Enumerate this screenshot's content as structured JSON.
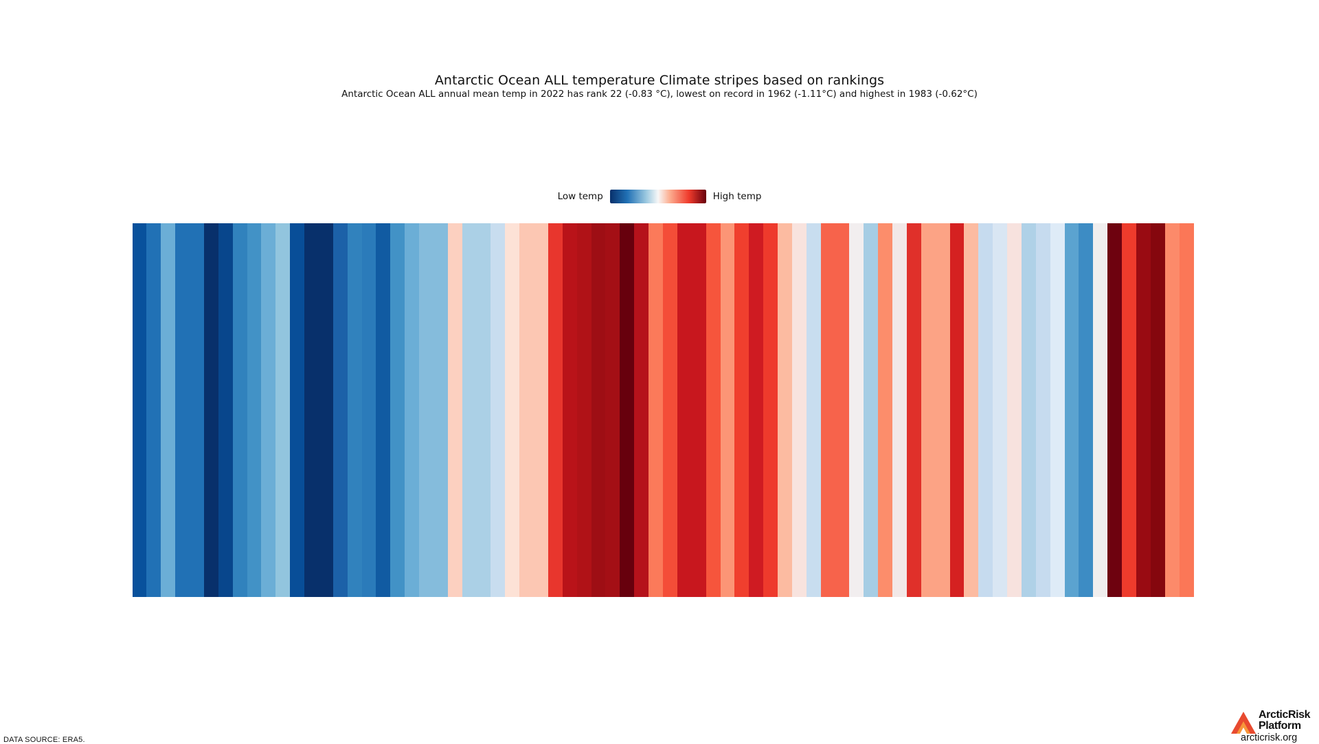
{
  "chart_data": {
    "type": "heatmap",
    "title": "Antarctic Ocean ALL temperature Climate stripes based on rankings",
    "subtitle": "Antarctic Ocean ALL annual mean temp in 2022 has rank 22 (-0.83 °C), lowest on record in 1962 (-1.11°C) and highest in 1983 (-0.62°C)",
    "legend": {
      "low_label": "Low temp",
      "high_label": "High temp",
      "placement": "top-center"
    },
    "stripe_colors": [
      "#08519c",
      "#2171b5",
      "#6baed6",
      "#2171b5",
      "#2171b5",
      "#08306b",
      "#08468c",
      "#3182bd",
      "#4292c6",
      "#6baed6",
      "#92c5de",
      "#084e98",
      "#08306b",
      "#08306b",
      "#1c61a8",
      "#3182bd",
      "#2b7bba",
      "#115ba2",
      "#4292c6",
      "#6baed6",
      "#85bcdc",
      "#85bcdc",
      "#fcd0c0",
      "#abd0e6",
      "#abd0e6",
      "#c8ddef",
      "#fde2d6",
      "#fcc7b3",
      "#fcc7b3",
      "#e8362d",
      "#b91319",
      "#b01217",
      "#9e0e14",
      "#a40f15",
      "#67000d",
      "#b5121b",
      "#fb7a5a",
      "#f44d38",
      "#c8171e",
      "#c8171e",
      "#f6553c",
      "#fc9576",
      "#f03f2e",
      "#cf1b22",
      "#ee3a2c",
      "#fcbba1",
      "#f8e3de",
      "#c8ddef",
      "#f7634b",
      "#f7634b",
      "#f2eeef",
      "#a6cde4",
      "#fc8d6b",
      "#f2e8e7",
      "#e0302a",
      "#fca385",
      "#fca385",
      "#d52121",
      "#fcbba1",
      "#c6dbef",
      "#d9e6f3",
      "#f7e2de",
      "#afd1e7",
      "#c6dbef",
      "#deebf7",
      "#5ba3d0",
      "#3d8cc4",
      "#f0eeee",
      "#6e020f",
      "#ee3b2c",
      "#990b12",
      "#85070e",
      "#fc8a6a",
      "#fb7757"
    ]
  },
  "footer": {
    "source": "DATA SOURCE: ERA5.",
    "logo_line1": "ArcticRisk",
    "logo_line2": "Platform",
    "logo_url": "arcticrisk.org"
  },
  "colors": {
    "low": "#08306b",
    "high": "#67000d",
    "logo_primary": "#e84a2f",
    "logo_secondary": "#f7963a"
  }
}
